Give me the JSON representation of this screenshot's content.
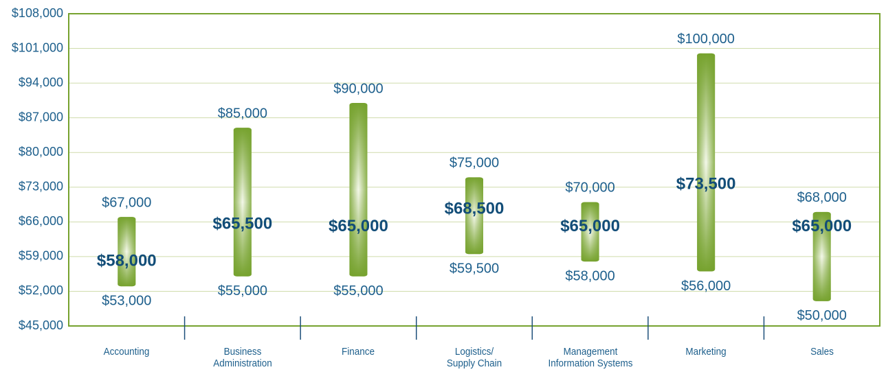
{
  "chart_data": {
    "type": "range",
    "categories": [
      "Accounting",
      "Business\nAdministration",
      "Finance",
      "Logistics/\nSupply Chain",
      "Management\nInformation Systems",
      "Marketing",
      "Sales"
    ],
    "low": {
      "values": [
        53000,
        55000,
        55000,
        59500,
        58000,
        56000,
        50000
      ],
      "value_labels": [
        "$53,000",
        "$55,000",
        "$55,000",
        "$59,500",
        "$58,000",
        "$56,000",
        "$50,000"
      ]
    },
    "high": {
      "values": [
        67000,
        85000,
        90000,
        75000,
        70000,
        100000,
        68000
      ],
      "value_labels": [
        "$67,000",
        "$85,000",
        "$90,000",
        "$75,000",
        "$70,000",
        "$100,000",
        "$68,000"
      ]
    },
    "median": {
      "values": [
        58000,
        65500,
        65000,
        68500,
        65000,
        73500,
        65000
      ],
      "value_labels": [
        "$58,000",
        "$65,500",
        "$65,000",
        "$68,500",
        "$65,000",
        "$73,500",
        "$65,000"
      ]
    },
    "color": "#76a22e",
    "ylim": [
      45000,
      108000
    ],
    "yticks": [
      {
        "value": 45000,
        "label": "$45,000"
      },
      {
        "value": 52000,
        "label": "$52,000"
      },
      {
        "value": 59000,
        "label": "$59,000"
      },
      {
        "value": 66000,
        "label": "$66,000"
      },
      {
        "value": 73000,
        "label": "$73,000"
      },
      {
        "value": 80000,
        "label": "$80,000"
      },
      {
        "value": 87000,
        "label": "$87,000"
      },
      {
        "value": 94000,
        "label": "$94,000"
      },
      {
        "value": 101000,
        "label": "$101,000"
      },
      {
        "value": 108000,
        "label": "$108,000"
      }
    ],
    "grid": true
  }
}
